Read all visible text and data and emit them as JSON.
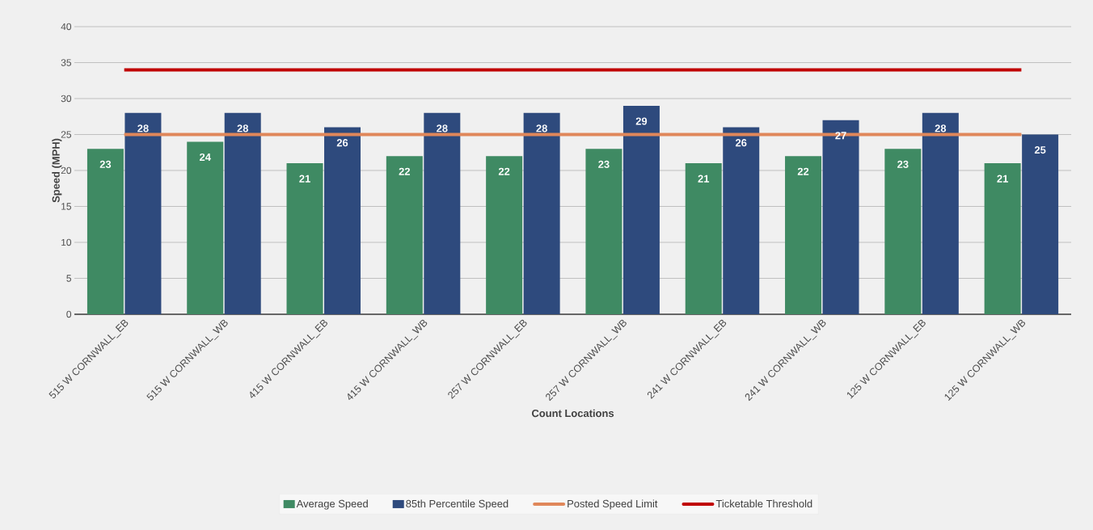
{
  "chart_data": {
    "type": "bar",
    "xlabel": "Count Locations",
    "ylabel": "Speed (MPH)",
    "categories": [
      "515 W CORNWALL_EB",
      "515 W CORNWALL_WB",
      "415 W CORNWALL_EB",
      "415 W CORNWALL_WB",
      "257 W CORNWALL_EB",
      "257 W CORNWALL_WB",
      "241 W CORNWALL_EB",
      "241 W CORNWALL_WB",
      "125 W CORNWALL_EB",
      "125 W CORNWALL_WB"
    ],
    "series": [
      {
        "name": "Average Speed",
        "color": "#3f8a63",
        "values": [
          23,
          24,
          21,
          22,
          22,
          23,
          21,
          22,
          23,
          21
        ],
        "value_labels": [
          "23",
          "24",
          "21",
          "22",
          "22",
          "23",
          "21",
          "22",
          "23",
          "21"
        ]
      },
      {
        "name": "85th Percentile Speed",
        "color": "#2e4a7d",
        "values": [
          28,
          28,
          26,
          28,
          28,
          29,
          26,
          27,
          28,
          25
        ],
        "value_labels": [
          "28",
          "28",
          "26",
          "28",
          "28",
          "29",
          "26",
          "27",
          "28",
          "25"
        ]
      },
      {
        "name": "Posted Speed Limit",
        "type": "line",
        "color": "#e0875a",
        "values": [
          25,
          25,
          25,
          25,
          25,
          25,
          25,
          25,
          25,
          25
        ]
      },
      {
        "name": "Ticketable Threshold",
        "type": "line",
        "color": "#c00000",
        "values": [
          34,
          34,
          34,
          34,
          34,
          34,
          34,
          34,
          34,
          34
        ]
      }
    ],
    "ylim": [
      0,
      40
    ],
    "yticks": [
      0,
      5,
      10,
      15,
      20,
      25,
      30,
      35,
      40
    ],
    "grid": "y",
    "legend": "bottom"
  }
}
